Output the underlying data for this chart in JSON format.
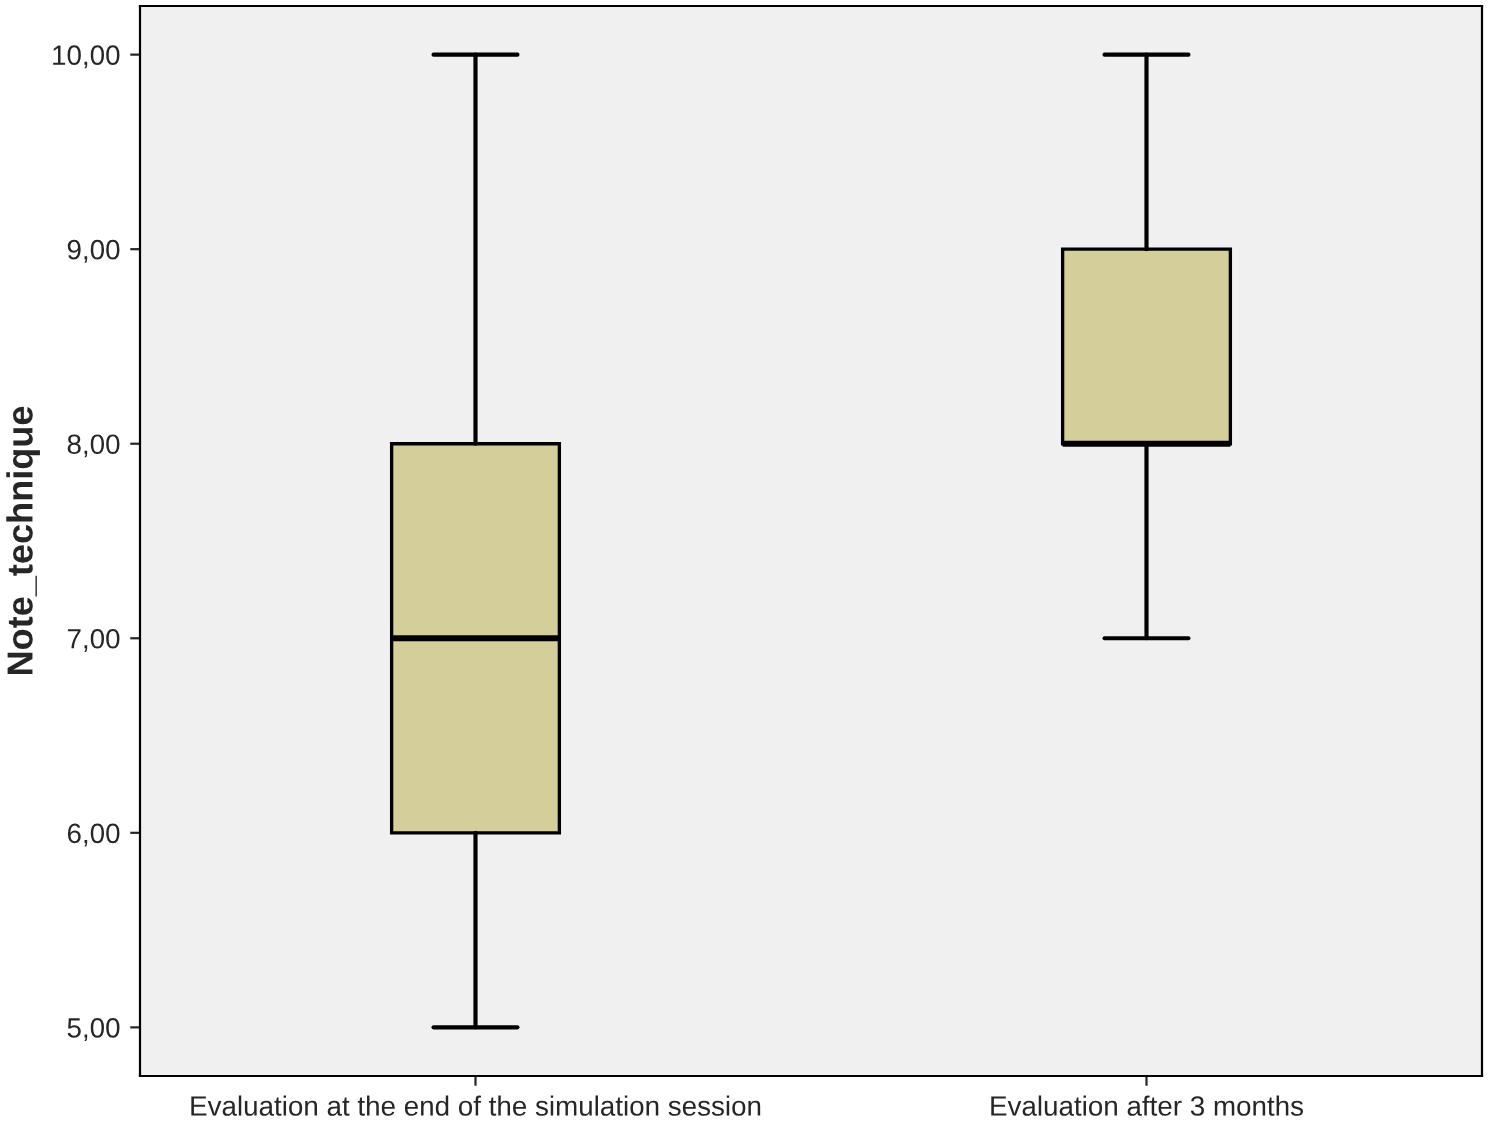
{
  "chart_data": {
    "type": "box",
    "ylabel": "Note_technique",
    "categories": [
      "Evaluation at the end of the simulation session",
      "Evaluation after 3 months"
    ],
    "boxes": [
      {
        "low": 5,
        "q1": 6,
        "median": 7,
        "q3": 8,
        "high": 10
      },
      {
        "low": 7,
        "q1": 8,
        "median": 8,
        "q3": 9,
        "high": 10
      }
    ],
    "color": "#d3ce9a",
    "ylim": [
      4.75,
      10.25
    ],
    "yticks": [
      {
        "value": 5,
        "label": "5,00"
      },
      {
        "value": 6,
        "label": "6,00"
      },
      {
        "value": 7,
        "label": "7,00"
      },
      {
        "value": 8,
        "label": "8,00"
      },
      {
        "value": 9,
        "label": "9,00"
      },
      {
        "value": 10,
        "label": "10,00"
      }
    ]
  }
}
